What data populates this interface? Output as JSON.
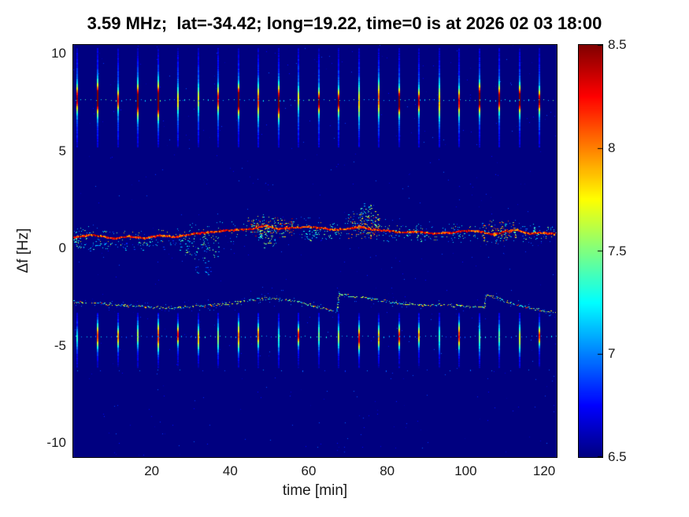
{
  "figure": {
    "background": "#ffffff"
  },
  "chart_data": {
    "type": "heatmap",
    "title": "3.59 MHz;  lat=-34.42; long=19.22, time=0 is at 2026 02 03 18:00",
    "xlabel": "time [min]",
    "ylabel": "Δf [Hz]",
    "xlim": [
      0,
      123.2
    ],
    "ylim": [
      -10.73,
      10.45
    ],
    "xticks": [
      20,
      40,
      60,
      80,
      100,
      120
    ],
    "yticks": [
      -10,
      -5,
      0,
      5,
      10
    ],
    "grid": false,
    "colormap": "jet",
    "colorbar": {
      "min": 6.5,
      "max": 8.5,
      "ticks": [
        6.5,
        7,
        7.5,
        8,
        8.5
      ],
      "position": "right"
    },
    "background_value": 6.5,
    "noise": {
      "count": 520,
      "v": [
        6.55,
        6.95
      ]
    },
    "spike_trains": [
      {
        "name": "upper-band-spikes",
        "y_center": 7.62,
        "extent": [
          5.2,
          10.3
        ],
        "start": 1.1,
        "period": 5.12,
        "amp": [
          0.7,
          2.0
        ],
        "core_sigma": [
          0.35,
          0.6
        ],
        "tail_amp": 0.5,
        "tail_sigma": 1.6
      },
      {
        "name": "lower-band-spikes",
        "y_center": -4.55,
        "extent": [
          -6.15,
          -3.3
        ],
        "start": 1.1,
        "period": 5.12,
        "amp": [
          0.45,
          1.5
        ],
        "core_sigma": [
          0.3,
          0.5
        ],
        "tail_amp": 0.35,
        "tail_sigma": 1.0
      }
    ],
    "dot_rows": [
      {
        "y": 7.62,
        "start": 0.6,
        "step": 1.28,
        "v": [
          7.0,
          7.5
        ]
      },
      {
        "y": -4.55,
        "start": 0.6,
        "step": 1.28,
        "v": [
          6.9,
          7.3
        ]
      },
      {
        "y": -6.28,
        "start": 1.1,
        "step": 5.12,
        "v": [
          6.8,
          7.05
        ]
      }
    ],
    "traces": [
      {
        "name": "main-doppler-trace",
        "style": "solid",
        "core_v": [
          7.9,
          8.5
        ],
        "width": 2,
        "points": [
          [
            0,
            0.55
          ],
          [
            5,
            0.7
          ],
          [
            10,
            0.5
          ],
          [
            14,
            0.62
          ],
          [
            18,
            0.5
          ],
          [
            22,
            0.66
          ],
          [
            26,
            0.58
          ],
          [
            30,
            0.74
          ],
          [
            34,
            0.8
          ],
          [
            38,
            0.9
          ],
          [
            42,
            0.95
          ],
          [
            46,
            1.0
          ],
          [
            49,
            1.18
          ],
          [
            52,
            1.0
          ],
          [
            56,
            1.05
          ],
          [
            60,
            1.1
          ],
          [
            64,
            1.02
          ],
          [
            66,
            0.95
          ],
          [
            70,
            1.0
          ],
          [
            73,
            1.1
          ],
          [
            76,
            0.95
          ],
          [
            80,
            0.9
          ],
          [
            84,
            0.8
          ],
          [
            88,
            0.85
          ],
          [
            92,
            0.75
          ],
          [
            96,
            0.8
          ],
          [
            100,
            0.9
          ],
          [
            104,
            0.85
          ],
          [
            107,
            0.7
          ],
          [
            110,
            0.85
          ],
          [
            113,
            0.95
          ],
          [
            116,
            0.75
          ],
          [
            119,
            0.8
          ],
          [
            123,
            0.72
          ]
        ]
      },
      {
        "name": "lower-doppler-trace",
        "style": "speckle",
        "core_v": [
          7.0,
          8.15
        ],
        "width": 2,
        "points": [
          [
            0,
            -2.75
          ],
          [
            6,
            -2.8
          ],
          [
            12,
            -2.9
          ],
          [
            18,
            -3.0
          ],
          [
            24,
            -3.05
          ],
          [
            30,
            -3.0
          ],
          [
            36,
            -2.9
          ],
          [
            42,
            -2.75
          ],
          [
            46,
            -2.62
          ],
          [
            50,
            -2.55
          ],
          [
            54,
            -2.62
          ],
          [
            58,
            -2.78
          ],
          [
            62,
            -3.0
          ],
          [
            66,
            -3.18
          ],
          [
            67,
            -3.25
          ],
          [
            67.6,
            -2.35
          ],
          [
            70,
            -2.42
          ],
          [
            74,
            -2.52
          ],
          [
            78,
            -2.65
          ],
          [
            82,
            -2.78
          ],
          [
            86,
            -2.85
          ],
          [
            90,
            -2.9
          ],
          [
            94,
            -2.9
          ],
          [
            98,
            -2.95
          ],
          [
            102,
            -3.0
          ],
          [
            104.6,
            -3.05
          ],
          [
            105.1,
            -2.4
          ],
          [
            108,
            -2.55
          ],
          [
            110,
            -2.7
          ],
          [
            113,
            -2.9
          ],
          [
            116,
            -3.05
          ],
          [
            119,
            -3.15
          ],
          [
            123,
            -3.3
          ]
        ]
      }
    ],
    "speckle_regions": [
      {
        "x": [
          0,
          2
        ],
        "y": 0.6,
        "spread": 0.7,
        "n": 25,
        "v": [
          6.9,
          7.6
        ]
      },
      {
        "x": [
          0,
          28
        ],
        "y": 0.2,
        "spread": 0.35,
        "n": 90,
        "v": [
          6.8,
          7.4
        ]
      },
      {
        "x": [
          28,
          37
        ],
        "y": 0.1,
        "spread": 0.8,
        "n": 70,
        "v": [
          6.85,
          7.7
        ]
      },
      {
        "x": [
          31,
          35
        ],
        "y": -1.0,
        "spread": 0.5,
        "n": 20,
        "v": [
          6.8,
          7.3
        ]
      },
      {
        "x": [
          44,
          56
        ],
        "y": 1.1,
        "spread": 0.6,
        "n": 170,
        "v": [
          7.1,
          8.5
        ]
      },
      {
        "x": [
          47,
          52
        ],
        "y": 0.5,
        "spread": 0.6,
        "n": 45,
        "v": [
          6.9,
          7.8
        ]
      },
      {
        "x": [
          58,
          67
        ],
        "y": 0.8,
        "spread": 0.45,
        "n": 50,
        "v": [
          6.9,
          7.6
        ]
      },
      {
        "x": [
          70,
          78
        ],
        "y": 1.2,
        "spread": 0.8,
        "n": 130,
        "v": [
          7.0,
          8.4
        ]
      },
      {
        "x": [
          73,
          76
        ],
        "y": 1.9,
        "spread": 0.6,
        "n": 40,
        "v": [
          6.9,
          7.7
        ]
      },
      {
        "x": [
          79,
          90
        ],
        "y": 0.7,
        "spread": 0.4,
        "n": 45,
        "v": [
          6.85,
          7.5
        ]
      },
      {
        "x": [
          93,
          103
        ],
        "y": 0.85,
        "spread": 0.35,
        "n": 35,
        "v": [
          6.85,
          7.4
        ]
      },
      {
        "x": [
          104,
          113
        ],
        "y": 0.9,
        "spread": 0.7,
        "n": 110,
        "v": [
          7.0,
          8.4
        ]
      },
      {
        "x": [
          114,
          123
        ],
        "y": 0.8,
        "spread": 0.4,
        "n": 40,
        "v": [
          6.9,
          7.6
        ]
      }
    ]
  }
}
